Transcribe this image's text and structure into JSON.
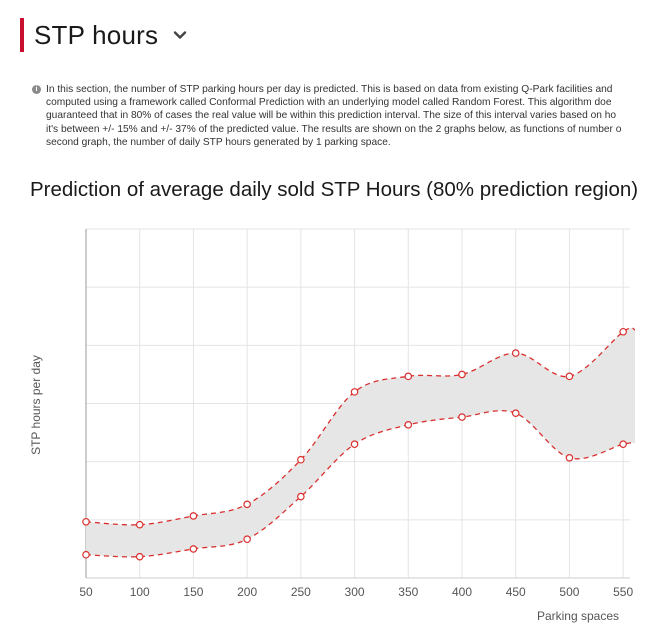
{
  "header": {
    "title": "STP hours",
    "accent_color": "#c8102e",
    "dropdown_icon": "chevron-down-icon"
  },
  "info": {
    "icon": "info-icon",
    "lines": [
      "In this section, the number of STP parking hours per day is predicted. This is based on data from existing Q-Park facilities and",
      "computed using a framework called Conformal  Prediction with an underlying model called  Random  Forest. This algorithm doe",
      "guaranteed that in 80% of cases the real value will be within this prediction interval. The size of this interval varies based on ho",
      "it's between +/- 15% and +/- 37% of the predicted value. The results are shown on the 2 graphs below, as functions of number o",
      "second graph, the number of daily STP hours generated by 1 parking space."
    ]
  },
  "chart_data": {
    "type": "area",
    "title": "Prediction of average daily sold STP  Hours (80% prediction region)",
    "xlabel": "Parking spaces",
    "ylabel": "STP hours per day",
    "x": [
      50,
      100,
      150,
      200,
      250,
      300,
      350,
      400,
      450,
      500,
      550
    ],
    "x_ticks": [
      50,
      100,
      150,
      200,
      250,
      300,
      350,
      400,
      450,
      500,
      550
    ],
    "xlim": [
      50,
      575
    ],
    "series": [
      {
        "values": [
          290,
          275,
          320,
          380,
          610,
          960,
          1040,
          1050,
          1160,
          1040,
          1270
        ]
      },
      {
        "values": [
          120,
          110,
          150,
          200,
          420,
          690,
          790,
          830,
          850,
          620,
          690
        ]
      }
    ],
    "ylim": [
      0,
      1800
    ],
    "grid": true,
    "band_color": "#e6e6e6",
    "line_color": "#d9302f"
  }
}
